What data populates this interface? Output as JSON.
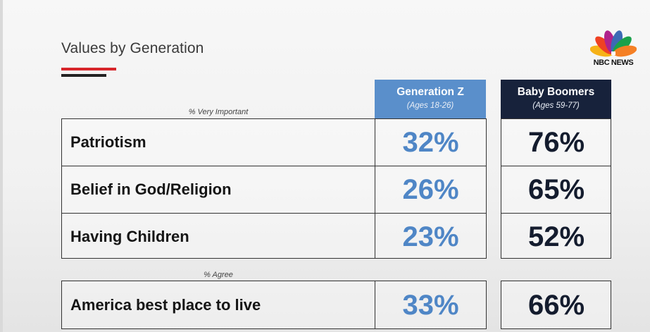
{
  "title": "Values by Generation",
  "brand": {
    "logo_text": "NBC NEWS",
    "colors": [
      "#f6b218",
      "#ef4123",
      "#b0228c",
      "#3c6ab5",
      "#1ba14b",
      "#f58025"
    ]
  },
  "colors": {
    "gen_z_header": "#5a8fcb",
    "boomers_header": "#17223b",
    "gen_z_value": "#4f86c6",
    "boomers_value": "#141c2e",
    "accent_red": "#d7262b"
  },
  "chart_data": {
    "type": "table",
    "columns": [
      {
        "name": "Generation Z",
        "subtitle": "(Ages 18-26)"
      },
      {
        "name": "Baby Boomers",
        "subtitle": "(Ages 59-77)"
      }
    ],
    "sections": [
      {
        "label": "% Very Important",
        "rows": [
          {
            "label": "Patriotism",
            "values": [
              "32%",
              "76%"
            ]
          },
          {
            "label": "Belief in God/Religion",
            "values": [
              "26%",
              "65%"
            ]
          },
          {
            "label": "Having Children",
            "values": [
              "23%",
              "52%"
            ]
          }
        ]
      },
      {
        "label": "% Agree",
        "rows": [
          {
            "label": "America best place to live",
            "values": [
              "33%",
              "66%"
            ]
          }
        ]
      }
    ]
  }
}
